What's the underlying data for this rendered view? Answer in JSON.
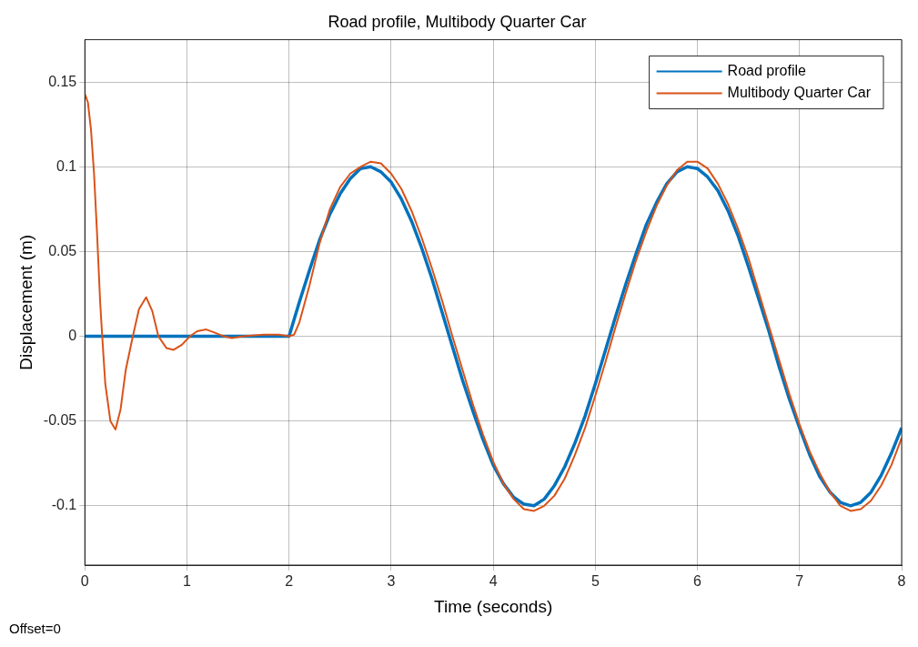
{
  "chart_data": {
    "type": "line",
    "title": "Road profile, Multibody Quarter Car",
    "xlabel": "Time (seconds)",
    "ylabel": "Displacement (m)",
    "xlim": [
      0,
      8
    ],
    "xticks": [
      0,
      1,
      2,
      3,
      4,
      5,
      6,
      7,
      8
    ],
    "ylim": [
      -0.135,
      0.175
    ],
    "yticks": [
      -0.1,
      -0.05,
      0,
      0.05,
      0.1,
      0.15
    ],
    "grid": true,
    "legend": "top right",
    "marker": "none",
    "line_style": "solid",
    "annotations": [
      "Offset=0"
    ],
    "series": [
      {
        "name": "Road profile",
        "color": "#0072bd",
        "x": [
          0,
          2,
          2.1,
          2.2,
          2.3,
          2.4,
          2.5,
          2.6,
          2.7,
          2.8,
          2.9,
          3.0,
          3.1,
          3.2,
          3.3,
          3.4,
          3.5,
          3.6,
          3.7,
          3.8,
          3.9,
          4.0,
          4.1,
          4.2,
          4.3,
          4.4,
          4.5,
          4.6,
          4.7,
          4.8,
          4.9,
          5.0,
          5.1,
          5.2,
          5.3,
          5.4,
          5.5,
          5.6,
          5.7,
          5.8,
          5.9,
          6.0,
          6.1,
          6.2,
          6.3,
          6.4,
          6.5,
          6.6,
          6.7,
          6.8,
          6.9,
          7.0,
          7.1,
          7.2,
          7.3,
          7.4,
          7.5,
          7.6,
          7.7,
          7.8,
          7.9,
          8.0
        ],
        "values": [
          0,
          0,
          0.02,
          0.039,
          0.057,
          0.072,
          0.084,
          0.093,
          0.099,
          0.1,
          0.097,
          0.091,
          0.081,
          0.068,
          0.052,
          0.034,
          0.014,
          -0.006,
          -0.026,
          -0.044,
          -0.061,
          -0.076,
          -0.087,
          -0.095,
          -0.099,
          -0.1,
          -0.096,
          -0.088,
          -0.077,
          -0.063,
          -0.047,
          -0.028,
          -0.008,
          0.012,
          0.031,
          0.049,
          0.066,
          0.079,
          0.09,
          0.097,
          0.1,
          0.099,
          0.094,
          0.086,
          0.074,
          0.059,
          0.041,
          0.022,
          0.003,
          -0.018,
          -0.037,
          -0.054,
          -0.07,
          -0.083,
          -0.092,
          -0.098,
          -0.1,
          -0.098,
          -0.092,
          -0.082,
          -0.069,
          -0.054
        ]
      },
      {
        "name": "Multibody Quarter Car",
        "color": "#d95319",
        "x": [
          0,
          0.03,
          0.06,
          0.09,
          0.12,
          0.15,
          0.17,
          0.2,
          0.25,
          0.3,
          0.35,
          0.4,
          0.47,
          0.53,
          0.6,
          0.66,
          0.72,
          0.8,
          0.87,
          0.95,
          1.03,
          1.1,
          1.19,
          1.28,
          1.36,
          1.44,
          1.55,
          1.75,
          1.9,
          2.0,
          2.05,
          2.1,
          2.2,
          2.3,
          2.4,
          2.5,
          2.6,
          2.7,
          2.8,
          2.9,
          3.0,
          3.1,
          3.2,
          3.3,
          3.4,
          3.5,
          3.6,
          3.7,
          3.8,
          3.9,
          4.0,
          4.1,
          4.2,
          4.3,
          4.4,
          4.5,
          4.6,
          4.7,
          4.8,
          4.9,
          5.0,
          5.1,
          5.2,
          5.3,
          5.4,
          5.5,
          5.6,
          5.7,
          5.8,
          5.9,
          6.0,
          6.1,
          6.2,
          6.3,
          6.4,
          6.5,
          6.6,
          6.7,
          6.8,
          6.9,
          7.0,
          7.1,
          7.2,
          7.3,
          7.4,
          7.5,
          7.6,
          7.7,
          7.8,
          7.9,
          8.0
        ],
        "values": [
          0.143,
          0.138,
          0.122,
          0.096,
          0.06,
          0.02,
          0,
          -0.028,
          -0.05,
          -0.055,
          -0.043,
          -0.02,
          0,
          0.016,
          0.023,
          0.015,
          0,
          -0.007,
          -0.008,
          -0.005,
          0,
          0.003,
          0.004,
          0.002,
          0,
          -0.001,
          0,
          0.001,
          0.001,
          0,
          0.001,
          0.008,
          0.03,
          0.055,
          0.075,
          0.088,
          0.096,
          0.1,
          0.103,
          0.102,
          0.096,
          0.087,
          0.074,
          0.058,
          0.04,
          0.021,
          0,
          -0.02,
          -0.04,
          -0.058,
          -0.074,
          -0.087,
          -0.096,
          -0.102,
          -0.103,
          -0.1,
          -0.094,
          -0.084,
          -0.07,
          -0.054,
          -0.035,
          -0.015,
          0.006,
          0.026,
          0.045,
          0.062,
          0.077,
          0.089,
          0.098,
          0.103,
          0.103,
          0.099,
          0.09,
          0.078,
          0.063,
          0.046,
          0.026,
          0.006,
          -0.014,
          -0.034,
          -0.052,
          -0.068,
          -0.081,
          -0.092,
          -0.1,
          -0.103,
          -0.102,
          -0.097,
          -0.088,
          -0.076,
          -0.06
        ]
      }
    ]
  }
}
